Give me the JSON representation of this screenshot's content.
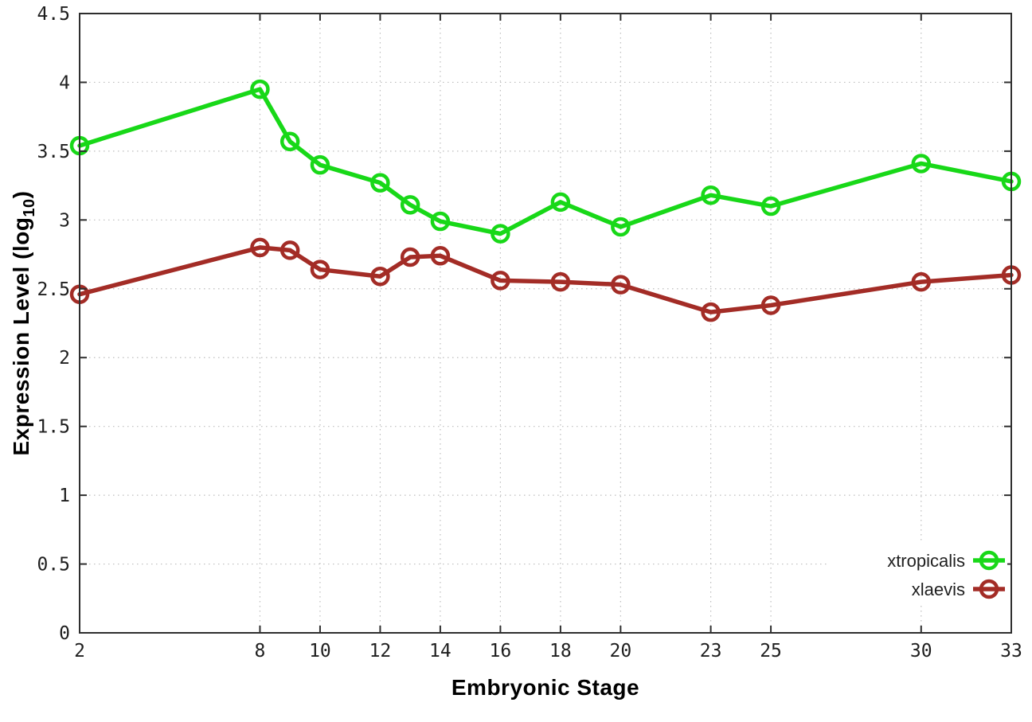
{
  "chart_data": {
    "type": "line",
    "title": "",
    "xlabel": "Embryonic Stage",
    "ylabel": "Expression Level (log10)",
    "ylabel_parts": {
      "prefix": "Expression Level (log",
      "sub": "10",
      "suffix": ")"
    },
    "xlim": [
      2,
      33
    ],
    "ylim": [
      0,
      4.5
    ],
    "xticks": [
      2,
      8,
      10,
      12,
      14,
      16,
      18,
      20,
      23,
      25,
      30,
      33
    ],
    "yticks": [
      0,
      0.5,
      1,
      1.5,
      2,
      2.5,
      3,
      3.5,
      4,
      4.5
    ],
    "grid": "dotted",
    "legend_position": "bottom-right",
    "marker": "open-circle",
    "x": [
      2,
      8,
      9,
      10,
      12,
      13,
      14,
      16,
      18,
      20,
      23,
      25,
      30,
      33
    ],
    "series": [
      {
        "name": "xtropicalis",
        "color": "#18d818",
        "values": [
          3.54,
          3.95,
          3.57,
          3.4,
          3.27,
          3.11,
          2.99,
          2.9,
          3.13,
          2.95,
          3.18,
          3.1,
          3.41,
          3.28
        ]
      },
      {
        "name": "xlaevis",
        "color": "#a32c26",
        "values": [
          2.46,
          2.8,
          2.78,
          2.64,
          2.59,
          2.73,
          2.74,
          2.56,
          2.55,
          2.53,
          2.33,
          2.38,
          2.55,
          2.6
        ]
      }
    ]
  },
  "colors": {
    "background": "#ffffff",
    "grid": "#bdbdbd",
    "axis": "#2e2e2e",
    "tick_text": "#1f1f1f",
    "title_text": "#000000"
  }
}
